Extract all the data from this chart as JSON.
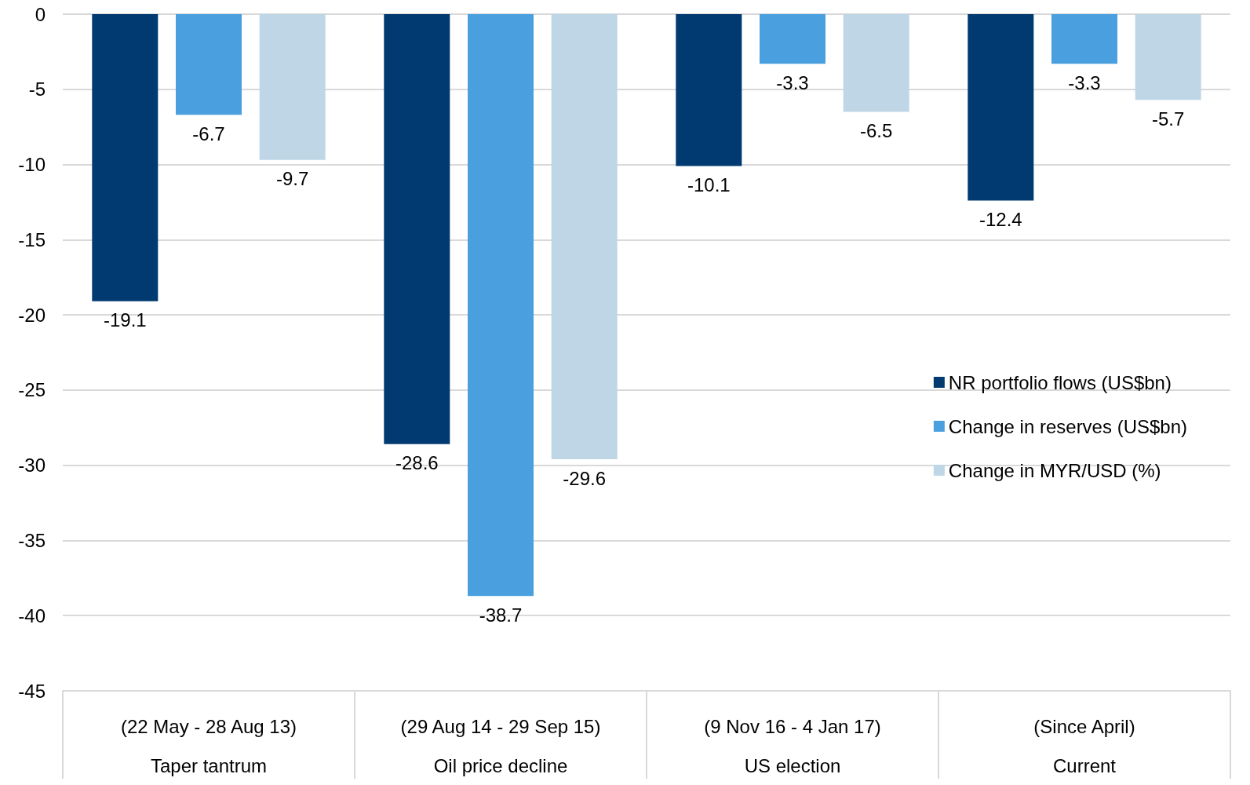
{
  "chart_data": {
    "type": "bar",
    "categories": [
      "(22 May - 28 Aug 13)\nTaper tantrum",
      "(29 Aug 14 - 29 Sep 15)\nOil price decline",
      "(9 Nov 16 - 4 Jan 17)\nUS election",
      "(Since April)\nCurrent"
    ],
    "series": [
      {
        "name": "NR portfolio flows (US$bn)",
        "color": "#003a70",
        "values": [
          -19.1,
          -28.6,
          -10.1,
          -12.4
        ]
      },
      {
        "name": "Change in reserves (US$bn)",
        "color": "#4aa0de",
        "values": [
          -6.7,
          -38.7,
          -3.3,
          -3.3
        ]
      },
      {
        "name": "Change in MYR/USD (%)",
        "color": "#bed6e6",
        "values": [
          -9.7,
          -29.6,
          -6.5,
          -5.7
        ]
      }
    ],
    "ylim": [
      -45,
      0
    ],
    "yticks": [
      0,
      -5,
      -10,
      -15,
      -20,
      -25,
      -30,
      -35,
      -40,
      -45
    ],
    "grid": "y",
    "legend": "right",
    "data_labels": true
  }
}
